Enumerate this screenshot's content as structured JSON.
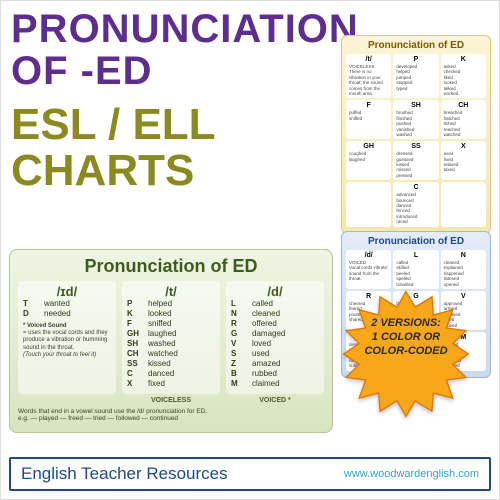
{
  "colors": {
    "title_purple": "#5d2e8f",
    "subtitle_olive": "#8a8a20",
    "footer_border": "#1a4a8a",
    "site_link": "#2fa5c9",
    "green_header": "#3f5c1e",
    "star_fill": "#f8a71b",
    "star_stroke": "#e07400"
  },
  "title": {
    "line1": "PRONUNCIATION",
    "line2": "OF -ED"
  },
  "subtitle": {
    "line1": "ESL / ELL",
    "line2": "CHARTS"
  },
  "starburst": {
    "line1": "2 VERSIONS:",
    "line2": "1 COLOR OR",
    "line3": "COLOR-CODED"
  },
  "footer": {
    "text": "English Teacher Resources",
    "site": "www.woodwardenglish.com"
  },
  "chart_yellow": {
    "header": "Pronunciation of ED",
    "cells": [
      {
        "h": "/t/",
        "lines": "VOICELESS\nThere is no vibration in your throat; the sound comes from the mouth area."
      },
      {
        "h": "P",
        "lines": "developed\nhelped\njumped\nstopped\ntyped"
      },
      {
        "h": "K",
        "lines": "asked\nchecked\nliked\nlooked\ntalked\nworked"
      },
      {
        "h": "F",
        "lines": "puffed\nsniffed"
      },
      {
        "h": "SH",
        "lines": "brushed\nfinished\npushed\nvanished\nwashed"
      },
      {
        "h": "CH",
        "lines": "breached\nhatched\nitched\nreached\nwatched"
      },
      {
        "h": "GH",
        "lines": "coughed\nlaughed"
      },
      {
        "h": "SS",
        "lines": "dressed\nguessed\nkissed\nmissed\npressed"
      },
      {
        "h": "X",
        "lines": "axed\nfixed\nrelaxed\ntaxed"
      },
      {
        "h": "",
        "lines": ""
      },
      {
        "h": "C",
        "lines": "advanced\nbounced\ndanced\nfenced\nintroduced\nraced"
      },
      {
        "h": "",
        "lines": ""
      }
    ]
  },
  "chart_blue": {
    "header": "Pronunciation of ED",
    "cells": [
      {
        "h": "/d/",
        "lines": "VOICED\nVocal cords vibrate; sound from the throat."
      },
      {
        "h": "L",
        "lines": "called\nskilled\npeeled\nspelled\ntravelled"
      },
      {
        "h": "N",
        "lines": "cleaned\nexplained\nhappened\nlistened\nopened"
      },
      {
        "h": "R",
        "lines": "cheered\nfeared\npoured\nshared"
      },
      {
        "h": "G",
        "lines": "bagged\nhugged"
      },
      {
        "h": "V",
        "lines": "approved\narrived\nbelieved\nloved\nmoved"
      },
      {
        "h": "B",
        "lines": "described\ngrabbed\nrobbed\nrubbed\nsubbed"
      },
      {
        "h": "Z",
        "lines": "amazed\nbuzzed"
      },
      {
        "h": "M",
        "lines": "blamed\nclaimed\ndimmed\nhummed\nzoomed"
      }
    ]
  },
  "chart_green": {
    "header": "Pronunciation of ED",
    "col1": {
      "sound": "/ɪd/",
      "rows": [
        {
          "l": "T",
          "w": "wanted"
        },
        {
          "l": "D",
          "w": "needed"
        }
      ],
      "note_title": "* Voiced Sound",
      "note_body": "= uses the vocal cords and they produce a vibration or humming sound in the throat.",
      "note_tip": "(Touch your throat to feel it)"
    },
    "col2": {
      "sound": "/t/",
      "rows": [
        {
          "l": "P",
          "w": "helped"
        },
        {
          "l": "K",
          "w": "looked"
        },
        {
          "l": "F",
          "w": "sniffed"
        },
        {
          "l": "GH",
          "w": "laughed"
        },
        {
          "l": "SH",
          "w": "washed"
        },
        {
          "l": "CH",
          "w": "watched"
        },
        {
          "l": "SS",
          "w": "kissed"
        },
        {
          "l": "C",
          "w": "danced"
        },
        {
          "l": "X",
          "w": "fixed"
        }
      ]
    },
    "col3": {
      "sound": "/d/",
      "rows": [
        {
          "l": "L",
          "w": "called"
        },
        {
          "l": "N",
          "w": "cleaned"
        },
        {
          "l": "R",
          "w": "offered"
        },
        {
          "l": "G",
          "w": "damaged"
        },
        {
          "l": "V",
          "w": "loved"
        },
        {
          "l": "S",
          "w": "used"
        },
        {
          "l": "Z",
          "w": "amazed"
        },
        {
          "l": "B",
          "w": "rubbed"
        },
        {
          "l": "M",
          "w": "claimed"
        }
      ]
    },
    "bar": {
      "c1": "",
      "c2": "VOICELESS",
      "c3": "VOICED *"
    },
    "footnote": "Words that end in a vowel sound use the /d/ pronunciation for ED.\ne.g. — played — freed — tried — followed — continued"
  }
}
